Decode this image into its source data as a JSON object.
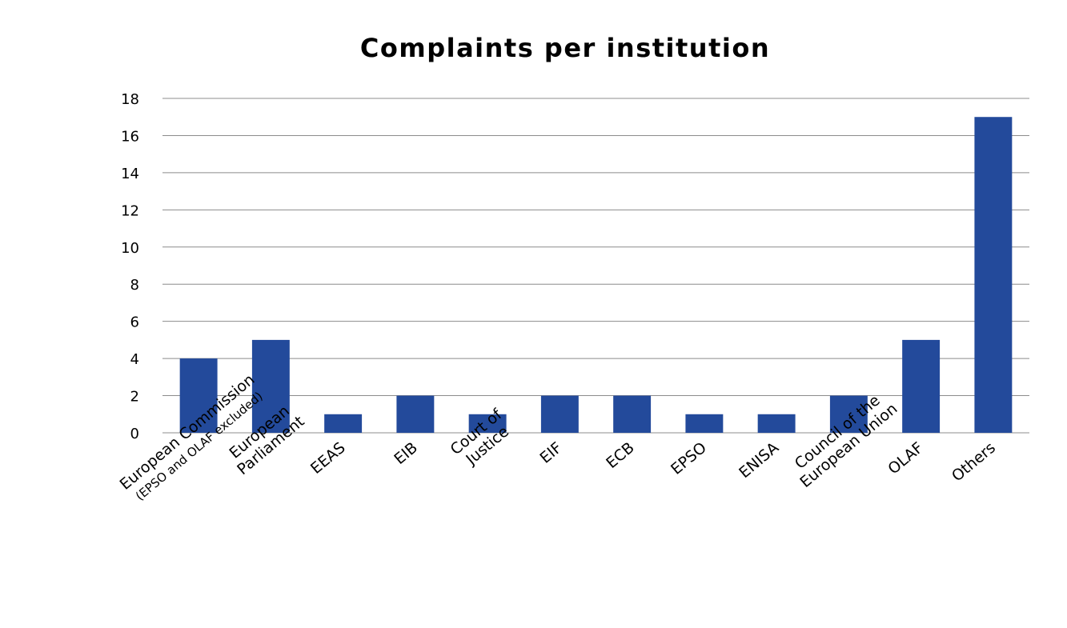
{
  "chart_data": {
    "type": "bar",
    "title": "Complaints per institution",
    "xlabel": "",
    "ylabel": "",
    "ylim": [
      0,
      18
    ],
    "yticks": [
      "0",
      "2",
      "4",
      "6",
      "8",
      "10",
      "12",
      "14",
      "16",
      "18"
    ],
    "grid": true,
    "legend": "none",
    "categories": [
      "European Commission (EPSO and OLAF excluded)",
      "European Parliament",
      "EEAS",
      "EIB",
      "Court of Justice",
      "EIF",
      "ECB",
      "EPSO",
      "ENISA",
      "Council of the European Union",
      "OLAF",
      "Others"
    ],
    "category_label_lines": [
      [
        "European Commission",
        "(EPSO and OLAF excluded)"
      ],
      [
        "European",
        "Parliament"
      ],
      [
        "EEAS"
      ],
      [
        "EIB"
      ],
      [
        "Court of",
        "Justice"
      ],
      [
        "EIF"
      ],
      [
        "ECB"
      ],
      [
        "EPSO"
      ],
      [
        "ENISA"
      ],
      [
        "Council of the",
        "European Union"
      ],
      [
        "OLAF"
      ],
      [
        "Others"
      ]
    ],
    "values": [
      4,
      5,
      1,
      2,
      1,
      2,
      2,
      1,
      1,
      2,
      5,
      17
    ],
    "colors": {
      "bar": "#234a9b"
    }
  }
}
